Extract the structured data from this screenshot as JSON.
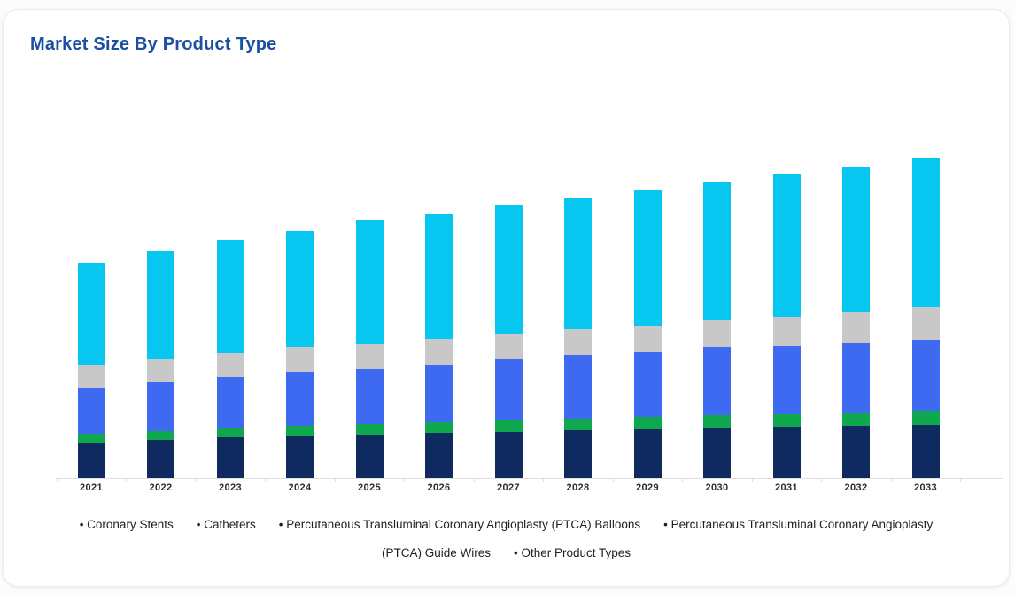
{
  "page": {
    "background": "#fcfcfc"
  },
  "card": {
    "title": "Market Size By Product Type",
    "title_color": "#1b4f9f"
  },
  "chart_data": {
    "type": "bar",
    "stacked": true,
    "title": "Market Size By Product Type",
    "categories": [
      "2021",
      "2022",
      "2023",
      "2024",
      "2025",
      "2026",
      "2027",
      "2028",
      "2029",
      "2030",
      "2031",
      "2032",
      "2033"
    ],
    "series": [
      {
        "name": "Coronary Stents",
        "color": "#0e2a5e",
        "values": [
          40,
          43,
          46,
          48,
          49,
          51,
          52,
          54,
          55,
          57,
          58,
          59,
          60
        ]
      },
      {
        "name": "Catheters",
        "color": "#0fa84e",
        "values": [
          10,
          10,
          11,
          11,
          12,
          12,
          13,
          13,
          14,
          14,
          14,
          15,
          16
        ]
      },
      {
        "name": "Percutaneous Transluminal Coronary Angioplasty (PTCA) Balloons",
        "color": "#3e6af2",
        "values": [
          52,
          55,
          57,
          61,
          62,
          65,
          69,
          72,
          73,
          77,
          77,
          78,
          80
        ]
      },
      {
        "name": "Percutaneous Transluminal Coronary Angioplasty (PTCA) Guide Wires",
        "color": "#c8c8c8",
        "values": [
          26,
          26,
          27,
          28,
          28,
          29,
          29,
          29,
          30,
          30,
          33,
          35,
          37
        ]
      },
      {
        "name": "Other Product Types",
        "color": "#07c6f0",
        "values": [
          115,
          123,
          128,
          131,
          140,
          141,
          145,
          148,
          153,
          156,
          161,
          164,
          169
        ]
      }
    ],
    "xlabel": "",
    "ylabel": "",
    "value_unit": "relative (no y-axis values shown in chart)",
    "ylim": [
      0,
      380
    ],
    "grid": false,
    "legend_position": "bottom",
    "axis_line_color": "#dedede",
    "x_tick_label_color": "#2d2d2d"
  },
  "legend": {
    "items": [
      "Coronary Stents",
      "Catheters",
      "Percutaneous Transluminal Coronary Angioplasty (PTCA) Balloons",
      "Percutaneous Transluminal Coronary Angioplasty (PTCA) Guide Wires",
      "Other Product Types"
    ],
    "lines": [
      [
        "• Coronary Stents",
        "• Catheters",
        "• Percutaneous Transluminal Coronary Angioplasty (PTCA) Balloons",
        "• Percutaneous Transluminal Coronary Angioplasty"
      ],
      [
        "(PTCA) Guide Wires",
        "• Other Product Types"
      ]
    ]
  }
}
